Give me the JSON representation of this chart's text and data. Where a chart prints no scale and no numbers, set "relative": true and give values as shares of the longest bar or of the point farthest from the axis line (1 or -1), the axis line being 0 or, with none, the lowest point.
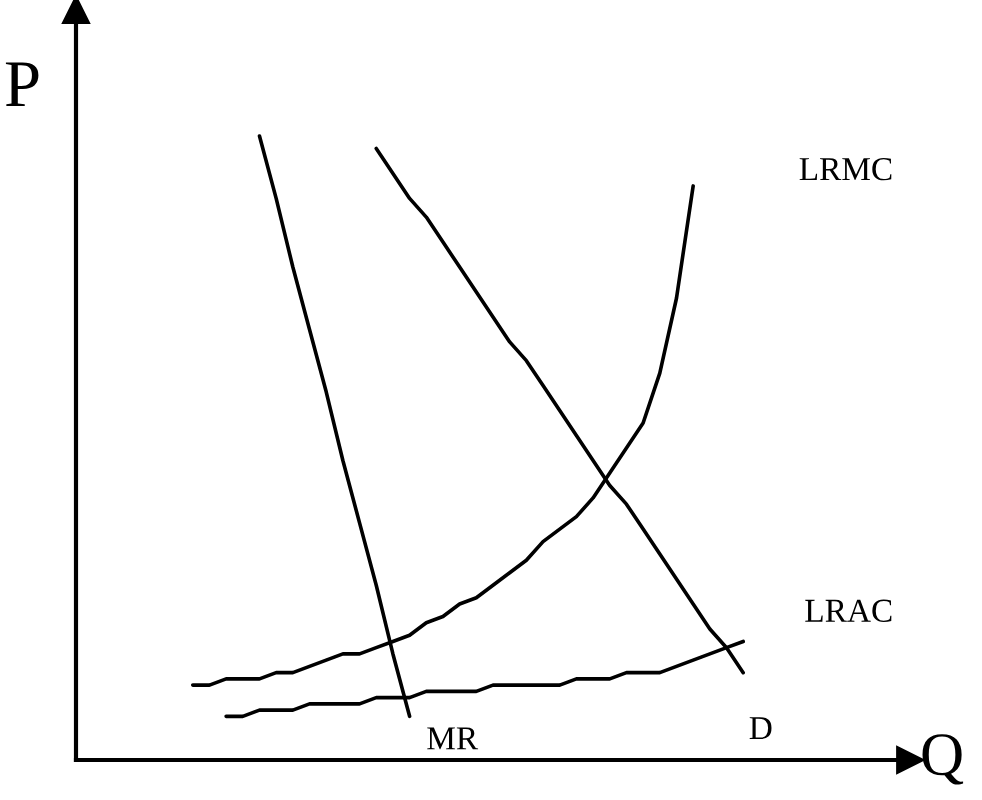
{
  "chart_data": {
    "type": "line",
    "relative": true,
    "xlabel": "Q",
    "ylabel": "P",
    "marker": "none",
    "line_style": "solid",
    "categories": [
      null,
      null,
      null,
      null,
      null,
      null,
      null,
      null,
      null,
      null,
      null,
      null,
      null,
      null,
      null,
      null,
      null,
      null,
      null,
      null,
      null,
      null,
      null,
      null,
      null,
      null,
      null,
      null,
      null,
      null,
      null,
      null,
      null,
      null,
      null,
      null,
      null,
      null,
      null,
      null,
      null,
      null,
      null,
      null,
      null,
      null,
      null,
      null,
      null,
      null,
      null
    ],
    "series": [
      {
        "name": "MR",
        "color": "#000000",
        "values": [
          null,
          null,
          null,
          null,
          null,
          null,
          null,
          null,
          null,
          null,
          null,
          1.0,
          0.9,
          0.79,
          0.69,
          0.59,
          0.48,
          0.38,
          0.28,
          0.17,
          0.07,
          null,
          null,
          null,
          null,
          null,
          null,
          null,
          null,
          null,
          null,
          null,
          null,
          null,
          null,
          null,
          null,
          null,
          null,
          null,
          null,
          null,
          null,
          null,
          null,
          null,
          null,
          null,
          null,
          null,
          null
        ]
      },
      {
        "name": "D",
        "color": "#000000",
        "values": [
          null,
          null,
          null,
          null,
          null,
          null,
          null,
          null,
          null,
          null,
          null,
          null,
          null,
          null,
          null,
          null,
          null,
          null,
          0.98,
          0.94,
          0.9,
          0.87,
          0.83,
          0.79,
          0.75,
          0.71,
          0.67,
          0.64,
          0.6,
          0.56,
          0.52,
          0.48,
          0.44,
          0.41,
          0.37,
          0.33,
          0.29,
          0.25,
          0.21,
          0.18,
          0.14,
          null,
          null,
          null,
          null,
          null,
          null,
          null,
          null,
          null,
          null
        ]
      },
      {
        "name": "LRMC",
        "color": "#000000",
        "values": [
          null,
          null,
          null,
          null,
          null,
          null,
          null,
          0.12,
          0.12,
          0.13,
          0.13,
          0.13,
          0.14,
          0.14,
          0.15,
          0.16,
          0.17,
          0.17,
          0.18,
          0.19,
          0.2,
          0.22,
          0.23,
          0.25,
          0.26,
          0.28,
          0.3,
          0.32,
          0.35,
          0.37,
          0.39,
          0.42,
          0.46,
          0.5,
          0.54,
          0.62,
          0.74,
          0.92,
          null,
          null,
          null,
          null,
          null,
          null,
          null,
          null,
          null,
          null,
          null,
          null,
          null
        ]
      },
      {
        "name": "LRAC",
        "color": "#000000",
        "values": [
          null,
          null,
          null,
          null,
          null,
          null,
          null,
          null,
          null,
          0.07,
          0.07,
          0.08,
          0.08,
          0.08,
          0.09,
          0.09,
          0.09,
          0.09,
          0.1,
          0.1,
          0.1,
          0.11,
          0.11,
          0.11,
          0.11,
          0.12,
          0.12,
          0.12,
          0.12,
          0.12,
          0.13,
          0.13,
          0.13,
          0.14,
          0.14,
          0.14,
          0.15,
          0.16,
          0.17,
          0.18,
          0.19,
          null,
          null,
          null,
          null,
          null,
          null,
          null,
          null,
          null,
          null
        ]
      }
    ]
  }
}
